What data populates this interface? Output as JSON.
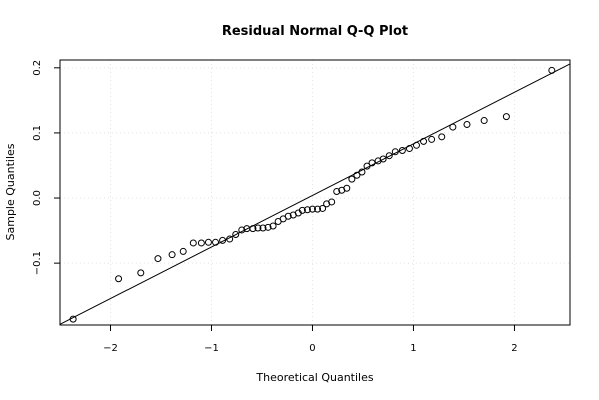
{
  "chart_data": {
    "type": "scatter",
    "title": "Residual Normal Q-Q Plot",
    "xlabel": "Theoretical Quantiles",
    "ylabel": "Sample Quantiles",
    "xlim": [
      -2.5,
      2.55
    ],
    "ylim": [
      -0.195,
      0.212
    ],
    "grid": true,
    "xticks": [
      -2,
      -1,
      0,
      1,
      2
    ],
    "xtick_labels": [
      "−2",
      "−1",
      "0",
      "1",
      "2"
    ],
    "yticks": [
      -0.1,
      0.0,
      0.1,
      0.2
    ],
    "ytick_labels": [
      "−0.1",
      "0.0",
      "0.1",
      "0.2"
    ],
    "reference_line": {
      "x": [
        -2.5,
        2.55
      ],
      "y": [
        -0.194,
        0.206
      ]
    },
    "points": {
      "x": [
        -2.37,
        -1.92,
        -1.7,
        -1.53,
        -1.39,
        -1.28,
        -1.18,
        -1.1,
        -1.03,
        -0.96,
        -0.89,
        -0.82,
        -0.76,
        -0.7,
        -0.65,
        -0.59,
        -0.54,
        -0.49,
        -0.44,
        -0.39,
        -0.34,
        -0.29,
        -0.24,
        -0.19,
        -0.14,
        -0.1,
        -0.05,
        0.0,
        0.05,
        0.1,
        0.14,
        0.19,
        0.24,
        0.29,
        0.34,
        0.39,
        0.44,
        0.49,
        0.54,
        0.59,
        0.65,
        0.7,
        0.76,
        0.82,
        0.89,
        0.96,
        1.03,
        1.1,
        1.18,
        1.28,
        1.39,
        1.53,
        1.7,
        1.92,
        2.37
      ],
      "y": [
        -0.186,
        -0.124,
        -0.115,
        -0.093,
        -0.087,
        -0.082,
        -0.069,
        -0.069,
        -0.068,
        -0.068,
        -0.065,
        -0.063,
        -0.056,
        -0.049,
        -0.047,
        -0.047,
        -0.046,
        -0.046,
        -0.045,
        -0.043,
        -0.036,
        -0.032,
        -0.028,
        -0.026,
        -0.023,
        -0.019,
        -0.018,
        -0.017,
        -0.017,
        -0.016,
        -0.009,
        -0.006,
        0.01,
        0.012,
        0.015,
        0.029,
        0.035,
        0.04,
        0.049,
        0.054,
        0.057,
        0.06,
        0.065,
        0.071,
        0.073,
        0.076,
        0.081,
        0.087,
        0.09,
        0.094,
        0.109,
        0.113,
        0.119,
        0.125,
        0.196
      ]
    }
  }
}
